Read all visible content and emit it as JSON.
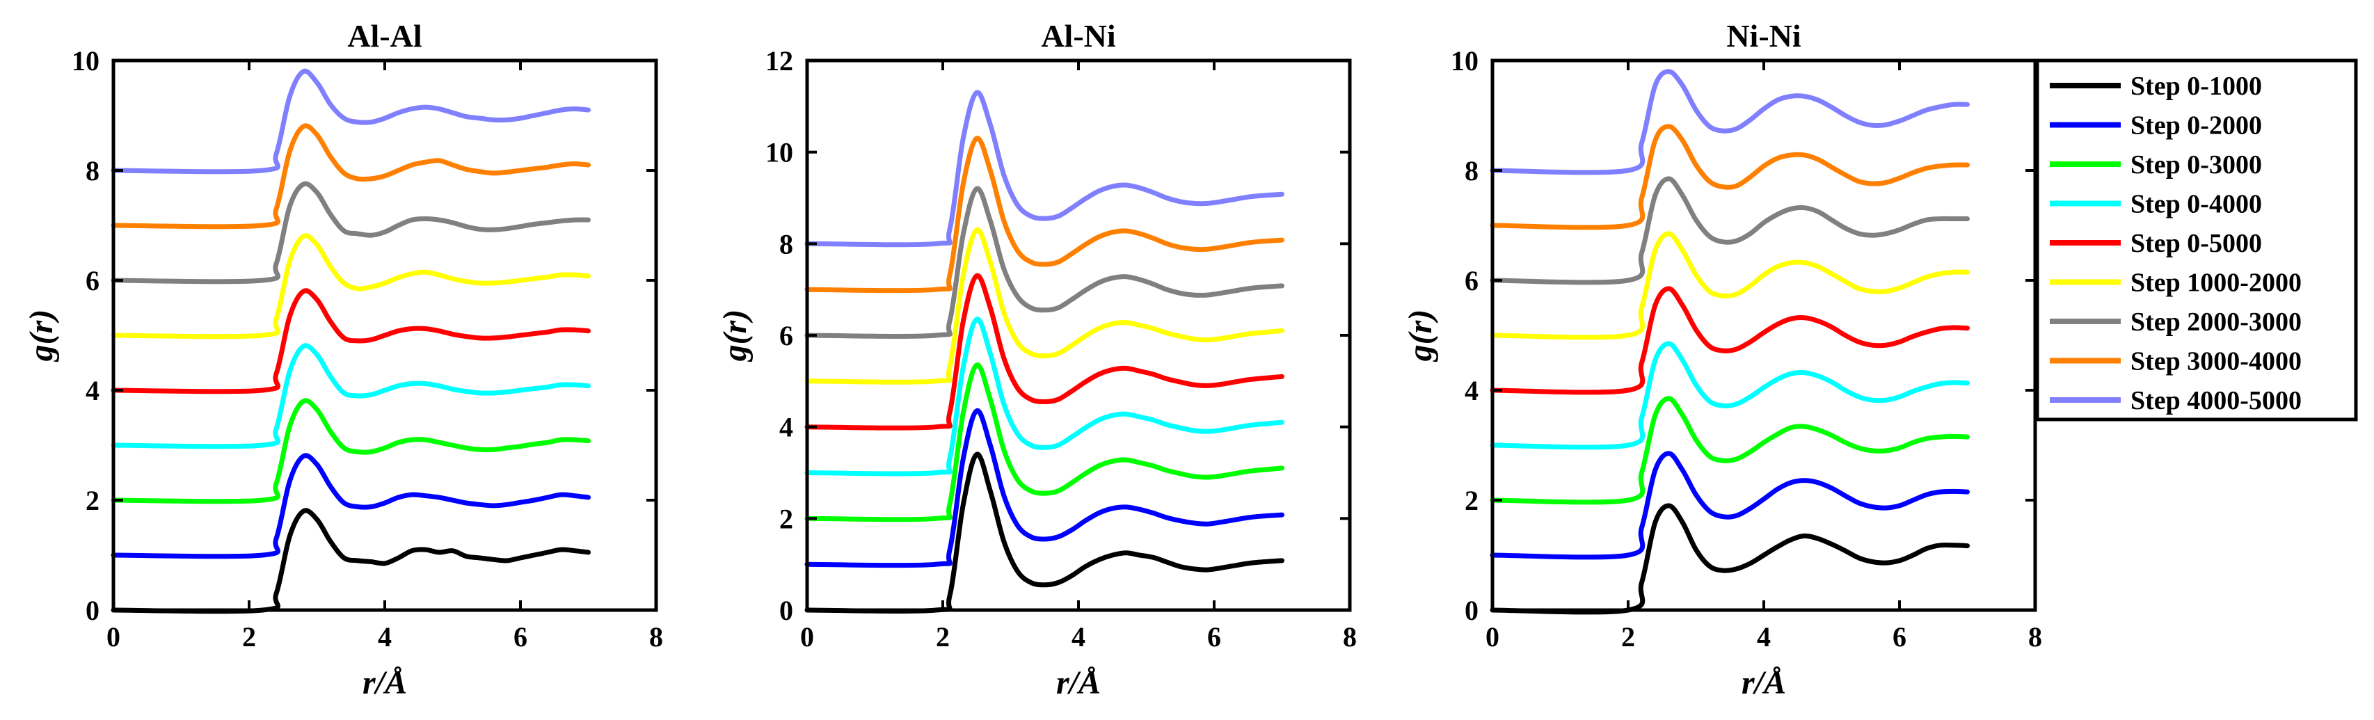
{
  "chart_data": [
    {
      "type": "line",
      "title": "Al-Al",
      "xlabel": "r/Å",
      "ylabel": "g(r)",
      "xlim": [
        0,
        8
      ],
      "ylim": [
        0,
        10
      ],
      "xticks": [
        "0",
        "2",
        "4",
        "6",
        "8"
      ],
      "yticks": [
        "0",
        "2",
        "4",
        "6",
        "8",
        "10"
      ],
      "x": [
        0,
        2.2,
        2.4,
        2.6,
        2.8,
        3.0,
        3.2,
        3.4,
        3.6,
        3.8,
        4.0,
        4.2,
        4.4,
        4.6,
        4.8,
        5.0,
        5.2,
        5.4,
        5.6,
        5.8,
        6.0,
        6.2,
        6.4,
        6.6,
        6.8,
        7.0
      ],
      "series": [
        {
          "name": "Step 0-1000",
          "values": [
            0,
            0,
            0.3,
            1.35,
            1.8,
            1.65,
            1.25,
            0.95,
            0.9,
            0.88,
            0.85,
            0.95,
            1.08,
            1.1,
            1.05,
            1.08,
            0.98,
            0.95,
            0.92,
            0.9,
            0.95,
            1.0,
            1.05,
            1.1,
            1.08,
            1.05
          ]
        },
        {
          "name": "Step 0-2000",
          "values": [
            1,
            1,
            1.3,
            2.35,
            2.8,
            2.65,
            2.25,
            1.95,
            1.88,
            1.88,
            1.95,
            2.05,
            2.1,
            2.08,
            2.05,
            2.0,
            1.95,
            1.92,
            1.9,
            1.92,
            1.96,
            2.0,
            2.05,
            2.1,
            2.08,
            2.05
          ]
        },
        {
          "name": "Step 0-3000",
          "values": [
            2,
            2,
            2.3,
            3.35,
            3.8,
            3.65,
            3.25,
            2.95,
            2.88,
            2.88,
            2.95,
            3.05,
            3.1,
            3.1,
            3.05,
            3.0,
            2.95,
            2.92,
            2.92,
            2.95,
            2.98,
            3.02,
            3.05,
            3.1,
            3.1,
            3.08
          ]
        },
        {
          "name": "Step 0-4000",
          "values": [
            3,
            3,
            3.3,
            4.35,
            4.8,
            4.65,
            4.25,
            3.95,
            3.9,
            3.92,
            4.0,
            4.08,
            4.12,
            4.12,
            4.08,
            4.02,
            3.98,
            3.95,
            3.95,
            3.97,
            4.0,
            4.03,
            4.06,
            4.1,
            4.1,
            4.08
          ]
        },
        {
          "name": "Step 0-5000",
          "values": [
            4,
            4,
            4.3,
            5.35,
            5.8,
            5.65,
            5.25,
            4.95,
            4.9,
            4.92,
            5.0,
            5.08,
            5.12,
            5.12,
            5.08,
            5.02,
            4.98,
            4.95,
            4.95,
            4.97,
            5.0,
            5.03,
            5.06,
            5.1,
            5.1,
            5.08
          ]
        },
        {
          "name": "Step 1000-2000",
          "values": [
            5,
            5,
            5.3,
            6.35,
            6.8,
            6.65,
            6.25,
            5.95,
            5.85,
            5.88,
            5.95,
            6.05,
            6.12,
            6.15,
            6.1,
            6.03,
            5.98,
            5.95,
            5.95,
            5.97,
            6.0,
            6.03,
            6.06,
            6.1,
            6.1,
            6.08
          ]
        },
        {
          "name": "Step 2000-3000",
          "values": [
            6,
            6,
            6.3,
            7.35,
            7.75,
            7.6,
            7.2,
            6.9,
            6.85,
            6.82,
            6.88,
            7.0,
            7.1,
            7.12,
            7.1,
            7.05,
            6.98,
            6.93,
            6.92,
            6.94,
            6.98,
            7.02,
            7.05,
            7.08,
            7.1,
            7.1
          ]
        },
        {
          "name": "Step 3000-4000",
          "values": [
            7,
            7,
            7.3,
            8.35,
            8.8,
            8.65,
            8.25,
            7.95,
            7.85,
            7.85,
            7.9,
            8.0,
            8.1,
            8.15,
            8.18,
            8.1,
            8.02,
            7.98,
            7.95,
            7.97,
            8.0,
            8.03,
            8.06,
            8.1,
            8.12,
            8.1
          ]
        },
        {
          "name": "Step 4000-5000",
          "values": [
            8,
            8,
            8.3,
            9.35,
            9.8,
            9.6,
            9.2,
            8.95,
            8.88,
            8.88,
            8.95,
            9.05,
            9.12,
            9.15,
            9.12,
            9.05,
            8.98,
            8.95,
            8.92,
            8.92,
            8.95,
            9.0,
            9.05,
            9.1,
            9.12,
            9.1
          ]
        }
      ]
    },
    {
      "type": "line",
      "title": "Al-Ni",
      "xlabel": "r/Å",
      "ylabel": "g(r)",
      "xlim": [
        0,
        8
      ],
      "ylim": [
        0,
        12
      ],
      "xticks": [
        "0",
        "2",
        "4",
        "6",
        "8"
      ],
      "yticks": [
        "0",
        "2",
        "4",
        "6",
        "8",
        "10",
        "12"
      ],
      "x": [
        0,
        1.9,
        2.1,
        2.3,
        2.5,
        2.7,
        2.9,
        3.1,
        3.3,
        3.5,
        3.7,
        3.9,
        4.1,
        4.3,
        4.5,
        4.7,
        4.9,
        5.1,
        5.3,
        5.5,
        5.7,
        5.9,
        6.1,
        6.3,
        6.5,
        6.7,
        7.0
      ],
      "series": [
        {
          "name": "Step 0-1000",
          "values": [
            0,
            0,
            0.3,
            2.3,
            3.4,
            2.6,
            1.5,
            0.85,
            0.6,
            0.55,
            0.6,
            0.75,
            0.95,
            1.1,
            1.2,
            1.25,
            1.2,
            1.15,
            1.05,
            0.95,
            0.9,
            0.88,
            0.92,
            0.97,
            1.02,
            1.05,
            1.08
          ]
        },
        {
          "name": "Step 0-2000",
          "values": [
            1,
            1,
            1.3,
            3.3,
            4.35,
            3.6,
            2.5,
            1.85,
            1.6,
            1.55,
            1.6,
            1.75,
            1.95,
            2.12,
            2.22,
            2.25,
            2.2,
            2.12,
            2.02,
            1.95,
            1.9,
            1.88,
            1.92,
            1.97,
            2.02,
            2.05,
            2.08
          ]
        },
        {
          "name": "Step 0-3000",
          "values": [
            2,
            2,
            2.3,
            4.3,
            5.35,
            4.6,
            3.5,
            2.85,
            2.6,
            2.55,
            2.6,
            2.78,
            2.98,
            3.15,
            3.25,
            3.28,
            3.22,
            3.15,
            3.05,
            2.98,
            2.92,
            2.9,
            2.93,
            2.98,
            3.03,
            3.06,
            3.1
          ]
        },
        {
          "name": "Step 0-4000",
          "values": [
            3,
            3,
            3.3,
            5.3,
            6.35,
            5.6,
            4.5,
            3.85,
            3.6,
            3.55,
            3.6,
            3.78,
            3.98,
            4.15,
            4.25,
            4.28,
            4.22,
            4.15,
            4.05,
            3.98,
            3.92,
            3.9,
            3.93,
            3.98,
            4.03,
            4.06,
            4.1
          ]
        },
        {
          "name": "Step 0-5000",
          "values": [
            4,
            4,
            4.3,
            6.3,
            7.3,
            6.6,
            5.5,
            4.85,
            4.6,
            4.55,
            4.6,
            4.78,
            4.98,
            5.15,
            5.25,
            5.28,
            5.22,
            5.15,
            5.05,
            4.98,
            4.92,
            4.9,
            4.93,
            4.98,
            5.03,
            5.06,
            5.1
          ]
        },
        {
          "name": "Step 1000-2000",
          "values": [
            5,
            5,
            5.3,
            7.3,
            8.3,
            7.6,
            6.5,
            5.85,
            5.6,
            5.55,
            5.6,
            5.78,
            5.98,
            6.15,
            6.25,
            6.28,
            6.22,
            6.15,
            6.05,
            5.98,
            5.92,
            5.9,
            5.93,
            5.98,
            6.03,
            6.06,
            6.1
          ]
        },
        {
          "name": "Step 2000-3000",
          "values": [
            6,
            6,
            6.3,
            8.2,
            9.2,
            8.5,
            7.45,
            6.85,
            6.6,
            6.55,
            6.6,
            6.78,
            6.98,
            7.15,
            7.25,
            7.28,
            7.22,
            7.12,
            7.0,
            6.92,
            6.88,
            6.88,
            6.92,
            6.97,
            7.02,
            7.05,
            7.08
          ]
        },
        {
          "name": "Step 3000-4000",
          "values": [
            7,
            7,
            7.3,
            9.3,
            10.3,
            9.6,
            8.5,
            7.85,
            7.6,
            7.55,
            7.6,
            7.78,
            7.98,
            8.15,
            8.25,
            8.28,
            8.22,
            8.12,
            8.0,
            7.92,
            7.88,
            7.88,
            7.92,
            7.97,
            8.02,
            8.05,
            8.08
          ]
        },
        {
          "name": "Step 4000-5000",
          "values": [
            8,
            8,
            8.3,
            10.3,
            11.3,
            10.6,
            9.5,
            8.85,
            8.6,
            8.55,
            8.6,
            8.78,
            8.98,
            9.15,
            9.25,
            9.28,
            9.22,
            9.12,
            9.0,
            8.92,
            8.88,
            8.88,
            8.92,
            8.97,
            9.02,
            9.05,
            9.08
          ]
        }
      ]
    },
    {
      "type": "line",
      "title": "Ni-Ni",
      "xlabel": "r/Å",
      "ylabel": "g(r)",
      "xlim": [
        0,
        8
      ],
      "ylim": [
        0,
        10
      ],
      "xticks": [
        "0",
        "2",
        "4",
        "6",
        "8"
      ],
      "yticks": [
        "0",
        "2",
        "4",
        "6",
        "8",
        "10"
      ],
      "x": [
        0,
        2.0,
        2.2,
        2.4,
        2.6,
        2.8,
        3.0,
        3.2,
        3.4,
        3.6,
        3.8,
        4.0,
        4.2,
        4.4,
        4.6,
        4.8,
        5.0,
        5.2,
        5.4,
        5.6,
        5.8,
        6.0,
        6.2,
        6.4,
        6.6,
        6.8,
        7.0
      ],
      "series": [
        {
          "name": "Step 0-1000",
          "values": [
            0,
            0,
            0.5,
            1.6,
            1.9,
            1.6,
            1.1,
            0.8,
            0.72,
            0.75,
            0.85,
            1.0,
            1.15,
            1.28,
            1.35,
            1.3,
            1.2,
            1.08,
            0.95,
            0.88,
            0.86,
            0.9,
            1.0,
            1.12,
            1.18,
            1.18,
            1.17
          ]
        },
        {
          "name": "Step 0-2000",
          "values": [
            1,
            1,
            1.5,
            2.55,
            2.85,
            2.55,
            2.1,
            1.8,
            1.7,
            1.72,
            1.85,
            2.02,
            2.2,
            2.32,
            2.36,
            2.32,
            2.22,
            2.08,
            1.95,
            1.88,
            1.86,
            1.9,
            2.0,
            2.1,
            2.15,
            2.16,
            2.15
          ]
        },
        {
          "name": "Step 0-3000",
          "values": [
            2,
            2,
            2.5,
            3.55,
            3.85,
            3.55,
            3.1,
            2.8,
            2.72,
            2.75,
            2.88,
            3.05,
            3.2,
            3.32,
            3.34,
            3.28,
            3.18,
            3.05,
            2.95,
            2.9,
            2.9,
            2.95,
            3.05,
            3.12,
            3.15,
            3.16,
            3.15
          ]
        },
        {
          "name": "Step 0-4000",
          "values": [
            3,
            3,
            3.5,
            4.55,
            4.85,
            4.55,
            4.1,
            3.8,
            3.72,
            3.75,
            3.88,
            4.05,
            4.2,
            4.3,
            4.32,
            4.26,
            4.15,
            4.0,
            3.88,
            3.82,
            3.82,
            3.88,
            3.98,
            4.06,
            4.12,
            4.14,
            4.13
          ]
        },
        {
          "name": "Step 0-5000",
          "values": [
            4,
            4,
            4.5,
            5.55,
            5.85,
            5.55,
            5.1,
            4.8,
            4.72,
            4.75,
            4.88,
            5.05,
            5.2,
            5.3,
            5.32,
            5.26,
            5.15,
            5.0,
            4.88,
            4.82,
            4.82,
            4.88,
            4.98,
            5.06,
            5.12,
            5.14,
            5.13
          ]
        },
        {
          "name": "Step 1000-2000",
          "values": [
            5,
            5,
            5.5,
            6.55,
            6.85,
            6.55,
            6.1,
            5.8,
            5.72,
            5.75,
            5.9,
            6.1,
            6.25,
            6.32,
            6.32,
            6.25,
            6.12,
            5.98,
            5.85,
            5.8,
            5.8,
            5.86,
            5.96,
            6.06,
            6.12,
            6.15,
            6.15
          ]
        },
        {
          "name": "Step 2000-3000",
          "values": [
            6,
            6,
            6.5,
            7.55,
            7.85,
            7.55,
            7.1,
            6.8,
            6.7,
            6.72,
            6.85,
            7.05,
            7.2,
            7.3,
            7.32,
            7.25,
            7.1,
            6.95,
            6.85,
            6.82,
            6.85,
            6.92,
            7.02,
            7.1,
            7.12,
            7.12,
            7.12
          ]
        },
        {
          "name": "Step 3000-4000",
          "values": [
            7,
            7,
            7.5,
            8.55,
            8.8,
            8.55,
            8.1,
            7.8,
            7.7,
            7.72,
            7.88,
            8.08,
            8.22,
            8.28,
            8.28,
            8.2,
            8.06,
            7.92,
            7.8,
            7.76,
            7.78,
            7.86,
            7.96,
            8.04,
            8.08,
            8.1,
            8.1
          ]
        },
        {
          "name": "Step 4000-5000",
          "values": [
            8,
            8,
            8.5,
            9.55,
            9.8,
            9.55,
            9.1,
            8.8,
            8.72,
            8.76,
            8.92,
            9.12,
            9.28,
            9.35,
            9.35,
            9.28,
            9.15,
            9.0,
            8.88,
            8.82,
            8.83,
            8.9,
            9.0,
            9.1,
            9.16,
            9.2,
            9.2
          ]
        }
      ]
    }
  ],
  "legend": {
    "position": "right",
    "entries": [
      {
        "label": "Step 0-1000",
        "color": "#000000"
      },
      {
        "label": "Step 0-2000",
        "color": "#0000FF"
      },
      {
        "label": "Step 0-3000",
        "color": "#00FF00"
      },
      {
        "label": "Step 0-4000",
        "color": "#00FFFF"
      },
      {
        "label": "Step 0-5000",
        "color": "#FF0000"
      },
      {
        "label": "Step 1000-2000",
        "color": "#FFFF00"
      },
      {
        "label": "Step 2000-3000",
        "color": "#808080"
      },
      {
        "label": "Step 3000-4000",
        "color": "#FF8000"
      },
      {
        "label": "Step 4000-5000",
        "color": "#8080FF"
      }
    ]
  }
}
